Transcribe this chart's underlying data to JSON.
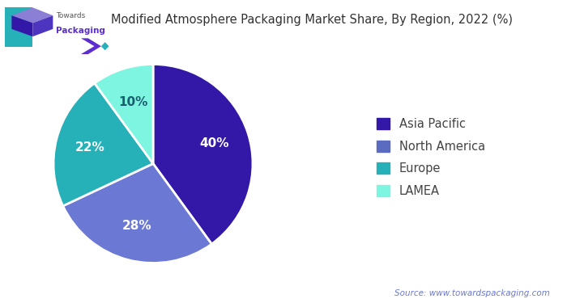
{
  "title": "Modified Atmosphere Packaging Market Share, By Region, 2022 (%)",
  "slices": [
    40,
    28,
    22,
    10
  ],
  "labels": [
    "Asia Pacific",
    "North America",
    "Europe",
    "LAMEA"
  ],
  "pct_labels": [
    "40%",
    "28%",
    "22%",
    "10%"
  ],
  "colors": [
    "#3318a8",
    "#6b78d4",
    "#26b0b8",
    "#7ef5e0"
  ],
  "start_angle": 90,
  "source_text": "Source: www.towardspackaging.com",
  "background_color": "#ffffff",
  "title_color": "#333333",
  "legend_colors": [
    "#3318a8",
    "#5b6bbf",
    "#26b0b8",
    "#7ef5e0"
  ],
  "shadow": false,
  "teal_line_color": "#26b0b8",
  "chevron_color": "#5c2ecf",
  "diamond_color": "#26b0b8"
}
